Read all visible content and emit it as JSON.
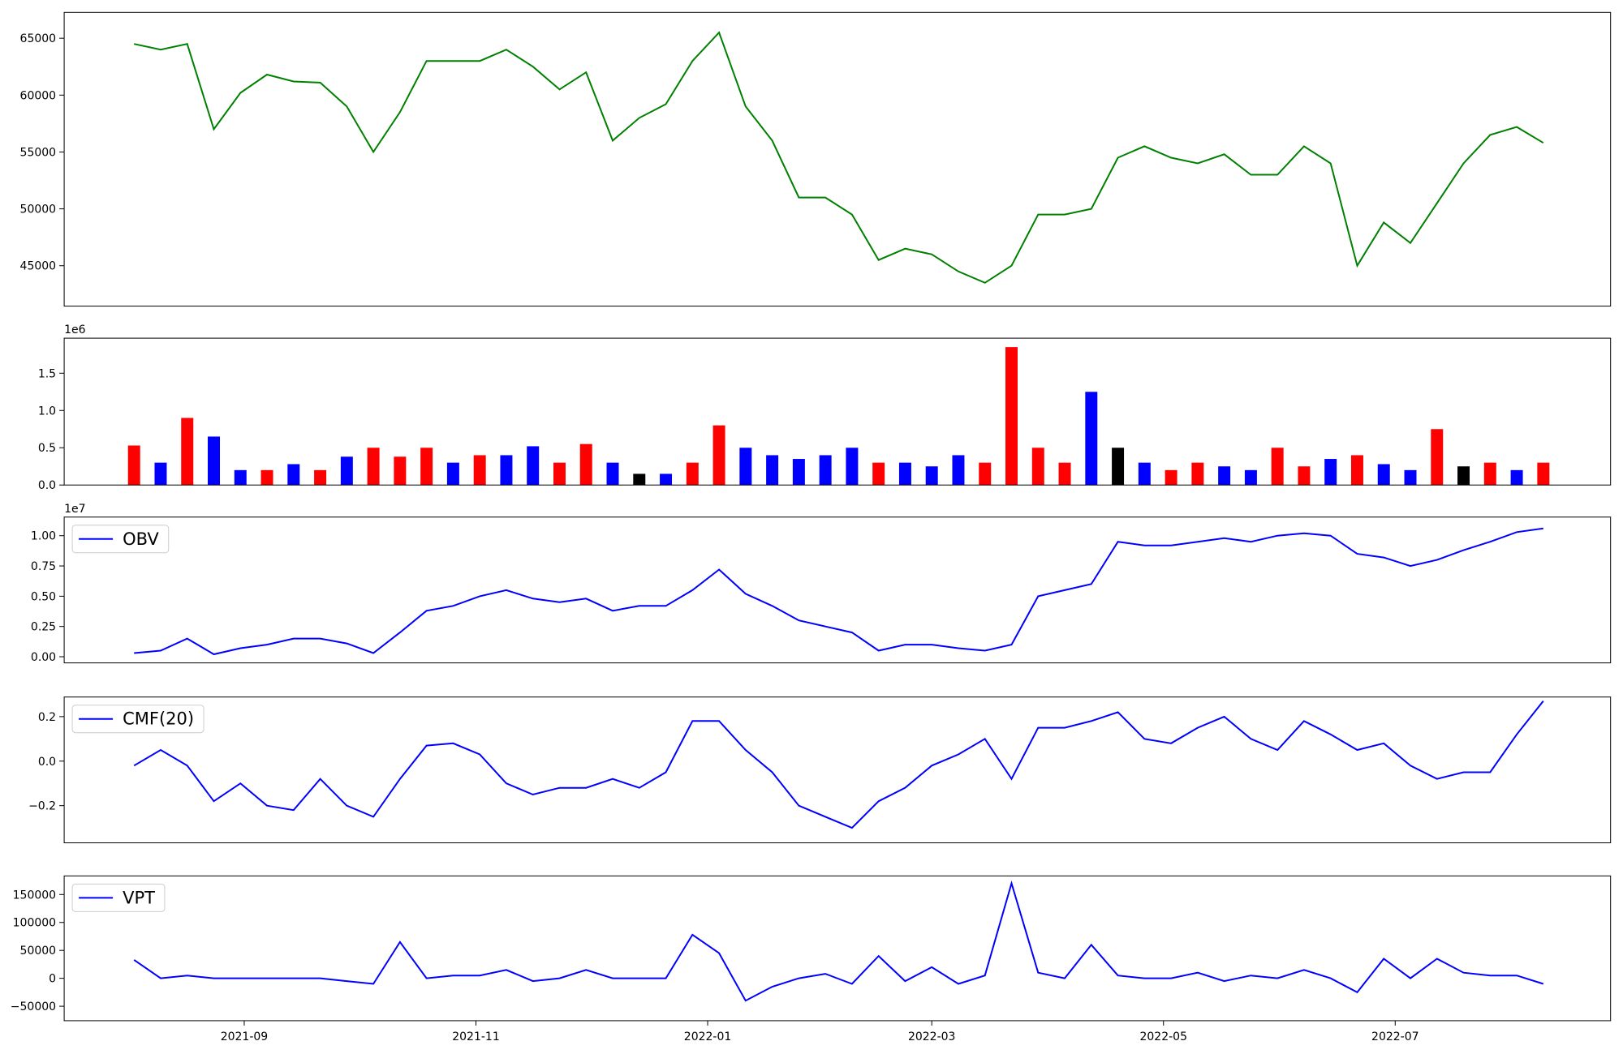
{
  "chart_data": [
    {
      "type": "line",
      "color": "green",
      "x": [
        18842,
        18849,
        18856,
        18863,
        18870,
        18877,
        18884,
        18891,
        18898,
        18905,
        18912,
        18919,
        18926,
        18933,
        18940,
        18947,
        18954,
        18961,
        18968,
        18975,
        18982,
        18989,
        18996,
        19003,
        19010,
        19017,
        19024,
        19031,
        19038,
        19045,
        19052,
        19059,
        19066,
        19073,
        19080,
        19087,
        19094,
        19101,
        19108,
        19115,
        19122,
        19129,
        19136,
        19143,
        19150,
        19157,
        19164,
        19171,
        19178,
        19185,
        19192,
        19199,
        19206,
        19213
      ],
      "values": [
        64500,
        64000,
        64500,
        57000,
        60200,
        61800,
        61200,
        61100,
        59000,
        55000,
        58500,
        63000,
        63000,
        63000,
        64000,
        62500,
        60500,
        62000,
        56000,
        58000,
        59200,
        63000,
        65500,
        59000,
        56000,
        51000,
        51000,
        49500,
        45500,
        46500,
        46000,
        44500,
        43500,
        45000,
        49500,
        49500,
        50000,
        54500,
        55500,
        54500,
        54000,
        54800,
        53000,
        53000,
        55500,
        54000,
        45000,
        48800,
        47000,
        50500,
        54000,
        56500,
        57200,
        55800
      ],
      "xlim": [
        18823.6,
        19230.7
      ],
      "ylim": [
        41450,
        67270
      ],
      "yticks": [
        45000,
        50000,
        55000,
        60000,
        65000
      ]
    },
    {
      "type": "bar",
      "offset_text": "1e6",
      "x": [
        18842,
        18849,
        18856,
        18863,
        18870,
        18877,
        18884,
        18891,
        18898,
        18905,
        18912,
        18919,
        18926,
        18933,
        18940,
        18947,
        18954,
        18961,
        18968,
        18975,
        18982,
        18989,
        18996,
        19003,
        19010,
        19017,
        19024,
        19031,
        19038,
        19045,
        19052,
        19059,
        19066,
        19073,
        19080,
        19087,
        19094,
        19101,
        19108,
        19115,
        19122,
        19129,
        19136,
        19143,
        19150,
        19157,
        19164,
        19171,
        19178,
        19185,
        19192,
        19199,
        19206,
        19213
      ],
      "values": [
        0.53,
        0.3,
        0.9,
        0.65,
        0.2,
        0.2,
        0.28,
        0.2,
        0.38,
        0.5,
        0.38,
        0.5,
        0.3,
        0.4,
        0.4,
        0.52,
        0.3,
        0.55,
        0.3,
        0.15,
        0.15,
        0.3,
        0.8,
        0.5,
        0.4,
        0.35,
        0.4,
        0.5,
        0.3,
        0.3,
        0.25,
        0.4,
        0.3,
        1.85,
        0.5,
        0.3,
        1.25,
        0.5,
        0.3,
        0.2,
        0.3,
        0.25,
        0.2,
        0.5,
        0.25,
        0.35,
        0.4,
        0.28,
        0.2,
        0.75,
        0.25,
        0.3,
        0.2,
        0.3
      ],
      "colors": [
        "red",
        "blue",
        "red",
        "blue",
        "blue",
        "red",
        "blue",
        "red",
        "blue",
        "red",
        "red",
        "red",
        "blue",
        "red",
        "blue",
        "blue",
        "red",
        "red",
        "blue",
        "black",
        "blue",
        "red",
        "red",
        "blue",
        "blue",
        "blue",
        "blue",
        "blue",
        "red",
        "blue",
        "blue",
        "blue",
        "red",
        "red",
        "red",
        "red",
        "blue",
        "black",
        "blue",
        "red",
        "red",
        "blue",
        "blue",
        "red",
        "red",
        "blue",
        "red",
        "blue",
        "blue",
        "red",
        "black",
        "red",
        "blue",
        "red"
      ],
      "xlim": [
        18823.6,
        19230.7
      ],
      "ylim": [
        0,
        1.97
      ],
      "yticks": [
        {
          "value": 0,
          "label": "0.0"
        },
        0.5,
        {
          "value": 1,
          "label": "1.0"
        },
        1.5
      ]
    },
    {
      "type": "line",
      "offset_text": "1e7",
      "legend": "upper left",
      "x": [
        18842,
        18849,
        18856,
        18863,
        18870,
        18877,
        18884,
        18891,
        18898,
        18905,
        18912,
        18919,
        18926,
        18933,
        18940,
        18947,
        18954,
        18961,
        18968,
        18975,
        18982,
        18989,
        18996,
        19003,
        19010,
        19017,
        19024,
        19031,
        19038,
        19045,
        19052,
        19059,
        19066,
        19073,
        19080,
        19087,
        19094,
        19101,
        19108,
        19115,
        19122,
        19129,
        19136,
        19143,
        19150,
        19157,
        19164,
        19171,
        19178,
        19185,
        19192,
        19199,
        19206,
        19213
      ],
      "series": [
        {
          "name": "OBV",
          "color": "blue",
          "values": [
            0.03,
            0.05,
            0.15,
            0.02,
            0.07,
            0.1,
            0.15,
            0.15,
            0.11,
            0.03,
            0.2,
            0.38,
            0.42,
            0.5,
            0.55,
            0.48,
            0.45,
            0.48,
            0.38,
            0.42,
            0.42,
            0.55,
            0.72,
            0.52,
            0.42,
            0.3,
            0.25,
            0.2,
            0.05,
            0.1,
            0.1,
            0.07,
            0.05,
            0.1,
            0.5,
            0.55,
            0.6,
            0.95,
            0.92,
            0.92,
            0.95,
            0.98,
            0.95,
            1.0,
            1.02,
            1.0,
            0.85,
            0.82,
            0.75,
            0.8,
            0.88,
            0.95,
            1.03,
            1.06
          ]
        }
      ],
      "xlim": [
        18823.6,
        19230.7
      ],
      "ylim": [
        -0.051,
        1.154
      ],
      "yticks": [
        {
          "value": 0,
          "label": "0.00"
        },
        0.25,
        {
          "value": 0.5,
          "label": "0.50"
        },
        0.75,
        {
          "value": 1,
          "label": "1.00"
        }
      ]
    },
    {
      "type": "line",
      "legend": "upper left",
      "x": [
        18842,
        18849,
        18856,
        18863,
        18870,
        18877,
        18884,
        18891,
        18898,
        18905,
        18912,
        18919,
        18926,
        18933,
        18940,
        18947,
        18954,
        18961,
        18968,
        18975,
        18982,
        18989,
        18996,
        19003,
        19010,
        19017,
        19024,
        19031,
        19038,
        19045,
        19052,
        19059,
        19066,
        19073,
        19080,
        19087,
        19094,
        19101,
        19108,
        19115,
        19122,
        19129,
        19136,
        19143,
        19150,
        19157,
        19164,
        19171,
        19178,
        19185,
        19192,
        19199,
        19206,
        19213
      ],
      "series": [
        {
          "name": "CMF(20)",
          "color": "blue",
          "values": [
            -0.02,
            0.05,
            -0.02,
            -0.18,
            -0.1,
            -0.2,
            -0.22,
            -0.08,
            -0.2,
            -0.25,
            -0.08,
            0.07,
            0.08,
            0.03,
            -0.1,
            -0.15,
            -0.12,
            -0.12,
            -0.08,
            -0.12,
            -0.05,
            0.18,
            0.18,
            0.05,
            -0.05,
            -0.2,
            -0.25,
            -0.3,
            -0.18,
            -0.12,
            -0.02,
            0.03,
            0.1,
            -0.08,
            0.15,
            0.15,
            0.18,
            0.22,
            0.1,
            0.08,
            0.15,
            0.2,
            0.1,
            0.05,
            0.18,
            0.12,
            0.05,
            0.08,
            -0.02,
            -0.08,
            -0.05,
            -0.05,
            0.12,
            0.27
          ]
        }
      ],
      "xlim": [
        18823.6,
        19230.7
      ],
      "ylim": [
        -0.367,
        0.288
      ],
      "yticks": [
        {
          "value": -0.2,
          "label": "−0.2"
        },
        {
          "value": 0,
          "label": "0.0"
        },
        0.2
      ]
    },
    {
      "type": "line",
      "legend": "upper left",
      "x": [
        18842,
        18849,
        18856,
        18863,
        18870,
        18877,
        18884,
        18891,
        18898,
        18905,
        18912,
        18919,
        18926,
        18933,
        18940,
        18947,
        18954,
        18961,
        18968,
        18975,
        18982,
        18989,
        18996,
        19003,
        19010,
        19017,
        19024,
        19031,
        19038,
        19045,
        19052,
        19059,
        19066,
        19073,
        19080,
        19087,
        19094,
        19101,
        19108,
        19115,
        19122,
        19129,
        19136,
        19143,
        19150,
        19157,
        19164,
        19171,
        19178,
        19185,
        19192,
        19199,
        19206,
        19213
      ],
      "series": [
        {
          "name": "VPT",
          "color": "blue",
          "values": [
            33000,
            0,
            5000,
            0,
            0,
            0,
            0,
            0,
            -5000,
            -10000,
            65000,
            0,
            5000,
            5000,
            15000,
            -5000,
            0,
            15000,
            0,
            0,
            0,
            78000,
            45000,
            -40000,
            -15000,
            0,
            8000,
            -10000,
            40000,
            -5000,
            20000,
            -10000,
            5000,
            170000,
            10000,
            0,
            60000,
            5000,
            0,
            0,
            10000,
            -5000,
            5000,
            0,
            15000,
            0,
            -25000,
            35000,
            0,
            35000,
            10000,
            5000,
            5000,
            -10000
          ]
        }
      ],
      "xlim": [
        18823.6,
        19230.7
      ],
      "ylim": [
        -75900,
        183300
      ],
      "yticks": [
        {
          "value": -50000,
          "label": "−50000"
        },
        0,
        50000,
        100000,
        150000
      ],
      "xticks": [
        {
          "value": 18871,
          "label": "2021-09"
        },
        {
          "value": 18932,
          "label": "2021-11"
        },
        {
          "value": 18993,
          "label": "2022-01"
        },
        {
          "value": 19052,
          "label": "2022-03"
        },
        {
          "value": 19113,
          "label": "2022-05"
        },
        {
          "value": 19174,
          "label": "2022-07"
        }
      ]
    }
  ]
}
